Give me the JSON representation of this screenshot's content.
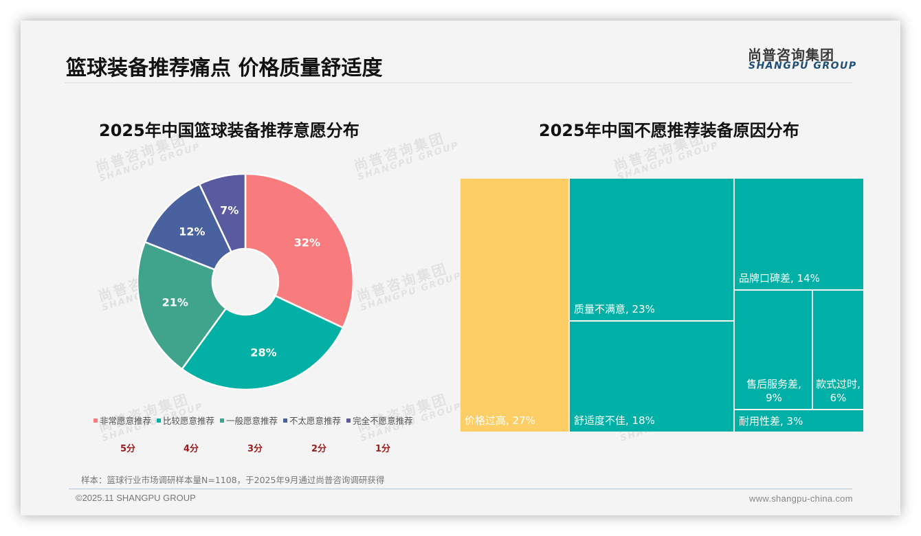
{
  "header": {
    "page_title": "篮球装备推荐痛点 价格质量舒适度",
    "logo_cn": "尚普咨询集团",
    "logo_en": "SHANGPU GROUP"
  },
  "watermark": {
    "cn": "尚普咨询集团",
    "en": "SHANGPU GROUP"
  },
  "left_chart": {
    "title": "2025年中国篮球装备推荐意愿分布",
    "legend": [
      {
        "label": "非常愿意推荐",
        "color": "#f87b7e",
        "score": "5分"
      },
      {
        "label": "比较愿意推荐",
        "color": "#02b0a5",
        "score": "4分"
      },
      {
        "label": "一般愿意推荐",
        "color": "#40a48c",
        "score": "3分"
      },
      {
        "label": "不太愿意推荐",
        "color": "#4a619f",
        "score": "2分"
      },
      {
        "label": "完全不愿意推荐",
        "color": "#5a5aa1",
        "score": "1分"
      }
    ]
  },
  "right_chart": {
    "title": "2025年中国不愿推荐装备原因分布"
  },
  "chart_data": [
    {
      "type": "pie",
      "title": "2025年中国篮球装备推荐意愿分布",
      "donut": true,
      "categories": [
        "非常愿意推荐",
        "比较愿意推荐",
        "一般愿意推荐",
        "不太愿意推荐",
        "完全不愿意推荐"
      ],
      "values": [
        32,
        28,
        21,
        12,
        7
      ],
      "labels": [
        "32%",
        "28%",
        "21%",
        "12%",
        "7%"
      ],
      "colors": [
        "#f87b7e",
        "#02b0a5",
        "#40a48c",
        "#4a619f",
        "#5a5aa1"
      ],
      "scores": [
        "5分",
        "4分",
        "3分",
        "2分",
        "1分"
      ],
      "legend_position": "bottom"
    },
    {
      "type": "treemap",
      "title": "2025年中国不愿推荐装备原因分布",
      "categories": [
        "价格过高",
        "质量不满意",
        "舒适度不佳",
        "品牌口碑差",
        "售后服务差",
        "款式过时",
        "耐用性差"
      ],
      "values": [
        27,
        23,
        18,
        14,
        9,
        6,
        3
      ],
      "labels": [
        "价格过高, 27%",
        "质量不满意, 23%",
        "舒适度不佳, 18%",
        "品牌口碑差, 14%",
        "售后服务差, 9%",
        "款式过时, 6%",
        "耐用性差, 3%"
      ],
      "colors": [
        "#fdcd66",
        "#00b0a6",
        "#00b0a6",
        "#00b0a6",
        "#00b0a6",
        "#00b0a6",
        "#00b0a6"
      ]
    }
  ],
  "footer": {
    "sample_note": "样本：篮球行业市场调研样本量N=1108，于2025年9月通过尚普咨询调研获得",
    "copyright": "©2025.11 SHANGPU GROUP",
    "website": "www.shangpu-china.com"
  }
}
